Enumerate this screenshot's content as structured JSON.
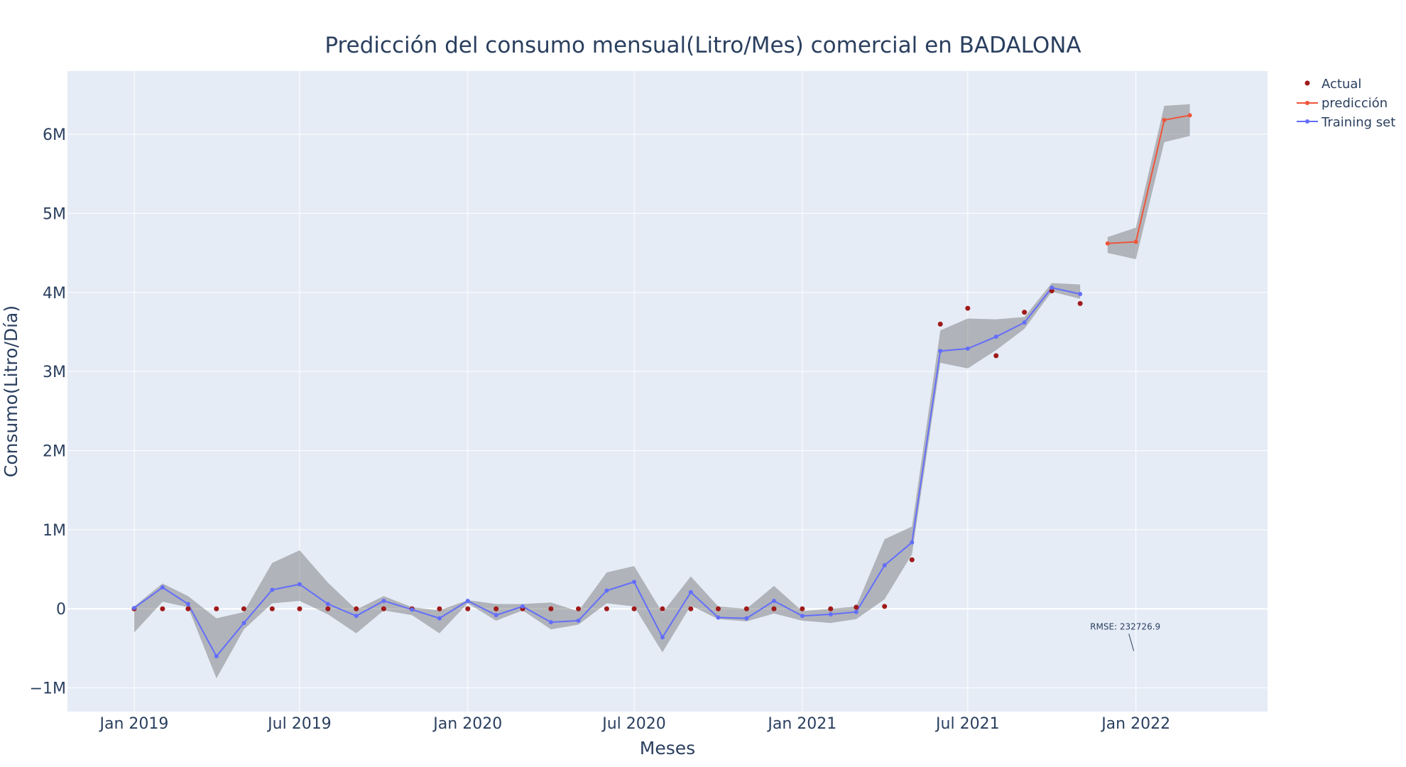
{
  "chart_data": {
    "type": "line",
    "title": "Predicción del consumo mensual(Litro/Mes) comercial en BADALONA",
    "xlabel": "Meses",
    "ylabel": "Consumo(Litro/Día)",
    "x_tick_labels": [
      {
        "date": "2019-01-01",
        "label": "Jan 2019"
      },
      {
        "date": "2019-07-01",
        "label": "Jul 2019"
      },
      {
        "date": "2020-01-01",
        "label": "Jan 2020"
      },
      {
        "date": "2020-07-01",
        "label": "Jul 2020"
      },
      {
        "date": "2021-01-01",
        "label": "Jan 2021"
      },
      {
        "date": "2021-07-01",
        "label": "Jul 2021"
      },
      {
        "date": "2022-01-01",
        "label": "Jan 2022"
      }
    ],
    "y_tick_labels": [
      {
        "value": -1000000,
        "label": "−1M"
      },
      {
        "value": 0,
        "label": "0"
      },
      {
        "value": 1000000,
        "label": "1M"
      },
      {
        "value": 2000000,
        "label": "2M"
      },
      {
        "value": 3000000,
        "label": "3M"
      },
      {
        "value": 4000000,
        "label": "4M"
      },
      {
        "value": 5000000,
        "label": "5M"
      },
      {
        "value": 6000000,
        "label": "6M"
      }
    ],
    "xlim": [
      "2018-10-20",
      "2022-05-25"
    ],
    "ylim": [
      -1300000,
      6800000
    ],
    "grid": true,
    "legend_position": "top-right",
    "series": [
      {
        "name": "Actual",
        "mode": "markers",
        "color": "#a01a1a",
        "x": [
          "2019-01-01",
          "2019-02-01",
          "2019-03-01",
          "2019-04-01",
          "2019-05-01",
          "2019-06-01",
          "2019-07-01",
          "2019-08-01",
          "2019-09-01",
          "2019-10-01",
          "2019-11-01",
          "2019-12-01",
          "2020-01-01",
          "2020-02-01",
          "2020-03-01",
          "2020-04-01",
          "2020-05-01",
          "2020-06-01",
          "2020-07-01",
          "2020-08-01",
          "2020-09-01",
          "2020-10-01",
          "2020-11-01",
          "2020-12-01",
          "2021-01-01",
          "2021-02-01",
          "2021-03-01",
          "2021-04-01",
          "2021-05-01",
          "2021-06-01",
          "2021-07-01",
          "2021-08-01",
          "2021-09-01",
          "2021-10-01",
          "2021-11-01"
        ],
        "y": [
          0,
          0,
          0,
          0,
          0,
          0,
          0,
          0,
          0,
          0,
          0,
          0,
          0,
          0,
          0,
          0,
          0,
          0,
          0,
          0,
          0,
          0,
          0,
          0,
          0,
          0,
          20000,
          30000,
          620000,
          3600000,
          3800000,
          3200000,
          3750000,
          4020000,
          3860000
        ]
      },
      {
        "name": "predicción",
        "mode": "lines+markers",
        "color": "#ef553b",
        "x": [
          "2021-12-01",
          "2022-01-01",
          "2022-02-01",
          "2022-03-01"
        ],
        "y": [
          4620000,
          4640000,
          6180000,
          6240000
        ],
        "upper": [
          4700000,
          4820000,
          6360000,
          6380000
        ],
        "lower": [
          4500000,
          4420000,
          5900000,
          5980000
        ]
      },
      {
        "name": "Training set",
        "mode": "lines+markers",
        "color": "#636efa",
        "x": [
          "2019-01-01",
          "2019-02-01",
          "2019-03-01",
          "2019-04-01",
          "2019-05-01",
          "2019-06-01",
          "2019-07-01",
          "2019-08-01",
          "2019-09-01",
          "2019-10-01",
          "2019-11-01",
          "2019-12-01",
          "2020-01-01",
          "2020-02-01",
          "2020-03-01",
          "2020-04-01",
          "2020-05-01",
          "2020-06-01",
          "2020-07-01",
          "2020-08-01",
          "2020-09-01",
          "2020-10-01",
          "2020-11-01",
          "2020-12-01",
          "2021-01-01",
          "2021-02-01",
          "2021-03-01",
          "2021-04-01",
          "2021-05-01",
          "2021-06-01",
          "2021-07-01",
          "2021-08-01",
          "2021-09-01",
          "2021-10-01",
          "2021-11-01"
        ],
        "y": [
          10000,
          270000,
          60000,
          -600000,
          -180000,
          240000,
          310000,
          60000,
          -90000,
          100000,
          -10000,
          -120000,
          100000,
          -80000,
          30000,
          -170000,
          -150000,
          230000,
          340000,
          -360000,
          210000,
          -110000,
          -120000,
          100000,
          -90000,
          -70000,
          -40000,
          550000,
          840000,
          3260000,
          3290000,
          3440000,
          3620000,
          4060000,
          3980000
        ],
        "upper": [
          30000,
          320000,
          160000,
          -120000,
          -40000,
          580000,
          740000,
          330000,
          -10000,
          160000,
          20000,
          -20000,
          110000,
          60000,
          60000,
          80000,
          -30000,
          460000,
          540000,
          -50000,
          410000,
          30000,
          0,
          290000,
          -30000,
          0,
          30000,
          880000,
          1040000,
          3520000,
          3670000,
          3660000,
          3690000,
          4120000,
          4100000
        ],
        "lower": [
          -300000,
          90000,
          20000,
          -880000,
          -260000,
          70000,
          100000,
          -70000,
          -310000,
          -20000,
          -80000,
          -310000,
          70000,
          -150000,
          -20000,
          -260000,
          -200000,
          70000,
          30000,
          -550000,
          40000,
          -130000,
          -160000,
          -60000,
          -150000,
          -180000,
          -130000,
          120000,
          690000,
          3110000,
          3040000,
          3270000,
          3540000,
          4010000,
          3920000
        ]
      }
    ],
    "annotations": [
      {
        "text": "RMSE: 232726.9",
        "x": "2022-01-01",
        "y": -550000
      }
    ]
  }
}
